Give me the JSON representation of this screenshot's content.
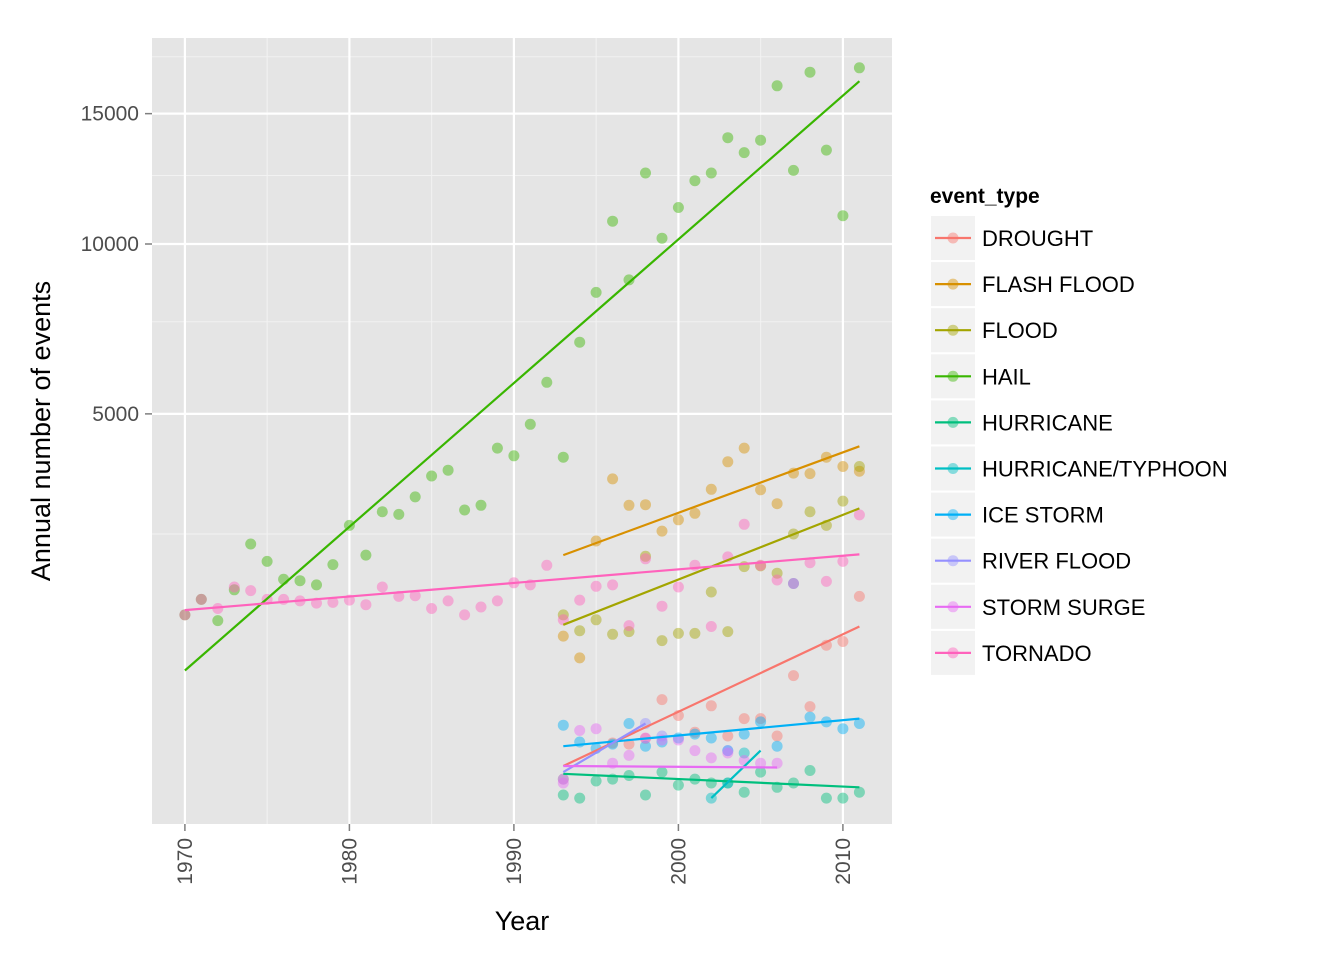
{
  "chart_data": {
    "type": "scatter",
    "title": "",
    "xlabel": "Year",
    "ylabel": "Annual number of events",
    "y_scale": "sqrt",
    "xlim": [
      1968,
      2013
    ],
    "ylim": [
      0,
      18000
    ],
    "x_ticks": [
      1970,
      1980,
      1990,
      2000,
      2010
    ],
    "y_ticks": [
      5000,
      10000,
      15000
    ],
    "x_tick_labels_rotation": "vertical",
    "grid": true,
    "trend_lines": "linear fit per series",
    "legend": {
      "title": "event_type",
      "placement": "right"
    },
    "series": [
      {
        "name": "DROUGHT",
        "color": "#F8766D",
        "points": [
          [
            1993,
            60
          ],
          [
            1996,
            195
          ],
          [
            1997,
            190
          ],
          [
            1998,
            218
          ],
          [
            1999,
            460
          ],
          [
            2000,
            350
          ],
          [
            2001,
            250
          ],
          [
            2002,
            415
          ],
          [
            2003,
            230
          ],
          [
            2004,
            330
          ],
          [
            2005,
            330
          ],
          [
            2006,
            230
          ],
          [
            2007,
            655
          ],
          [
            2008,
            410
          ],
          [
            2009,
            950
          ],
          [
            2010,
            990
          ],
          [
            2011,
            1540
          ]
        ],
        "trend": [
          [
            1993,
            100
          ],
          [
            2011,
            1160
          ]
        ]
      },
      {
        "name": "FLASH FLOOD",
        "color": "#D89000",
        "points": [
          [
            1993,
            1050
          ],
          [
            1994,
            820
          ],
          [
            1995,
            2380
          ],
          [
            1996,
            3540
          ],
          [
            1997,
            3020
          ],
          [
            1998,
            3030
          ],
          [
            1999,
            2550
          ],
          [
            2000,
            2750
          ],
          [
            2001,
            2870
          ],
          [
            2002,
            3330
          ],
          [
            2003,
            3900
          ],
          [
            2004,
            4200
          ],
          [
            2005,
            3320
          ],
          [
            2006,
            3050
          ],
          [
            2007,
            3660
          ],
          [
            2008,
            3650
          ],
          [
            2009,
            4000
          ],
          [
            2010,
            3800
          ],
          [
            2011,
            3700
          ]
        ],
        "trend": [
          [
            1993,
            2150
          ],
          [
            2011,
            4240
          ]
        ]
      },
      {
        "name": "FLOOD",
        "color": "#A3A500",
        "points": [
          [
            1993,
            1300
          ],
          [
            1994,
            1110
          ],
          [
            1995,
            1240
          ],
          [
            1996,
            1070
          ],
          [
            1997,
            1100
          ],
          [
            1998,
            2130
          ],
          [
            1999,
            1000
          ],
          [
            2000,
            1080
          ],
          [
            2001,
            1080
          ],
          [
            2002,
            1600
          ],
          [
            2003,
            1100
          ],
          [
            2004,
            1970
          ],
          [
            2005,
            1980
          ],
          [
            2006,
            1870
          ],
          [
            2007,
            2500
          ],
          [
            2008,
            2900
          ],
          [
            2009,
            2650
          ],
          [
            2010,
            3100
          ],
          [
            2011,
            3800
          ]
        ],
        "trend": [
          [
            1993,
            1180
          ],
          [
            2011,
            2960
          ]
        ]
      },
      {
        "name": "HAIL",
        "color": "#39B600",
        "points": [
          [
            1970,
            1300
          ],
          [
            1971,
            1500
          ],
          [
            1972,
            1230
          ],
          [
            1973,
            1630
          ],
          [
            1974,
            2330
          ],
          [
            1975,
            2050
          ],
          [
            1976,
            1780
          ],
          [
            1977,
            1760
          ],
          [
            1978,
            1700
          ],
          [
            1979,
            2000
          ],
          [
            1980,
            2650
          ],
          [
            1981,
            2150
          ],
          [
            1982,
            2900
          ],
          [
            1983,
            2850
          ],
          [
            1984,
            3180
          ],
          [
            1985,
            3600
          ],
          [
            1986,
            3720
          ],
          [
            1987,
            2930
          ],
          [
            1988,
            3020
          ],
          [
            1989,
            4200
          ],
          [
            1990,
            4030
          ],
          [
            1991,
            4750
          ],
          [
            1992,
            5800
          ],
          [
            1993,
            4000
          ],
          [
            1994,
            6900
          ],
          [
            1995,
            8400
          ],
          [
            1996,
            10800
          ],
          [
            1997,
            8800
          ],
          [
            1998,
            12600
          ],
          [
            1999,
            10200
          ],
          [
            2000,
            11300
          ],
          [
            2001,
            12300
          ],
          [
            2002,
            12600
          ],
          [
            2003,
            14000
          ],
          [
            2004,
            13400
          ],
          [
            2005,
            13900
          ],
          [
            2006,
            16200
          ],
          [
            2007,
            12700
          ],
          [
            2008,
            16800
          ],
          [
            2009,
            13500
          ],
          [
            2010,
            11000
          ],
          [
            2011,
            17000
          ]
        ],
        "trend": [
          [
            1970,
            700
          ],
          [
            2011,
            16400
          ]
        ]
      },
      {
        "name": "HURRICANE",
        "color": "#00BF7D",
        "points": [
          [
            1993,
            25
          ],
          [
            1994,
            20
          ],
          [
            1995,
            55
          ],
          [
            1996,
            60
          ],
          [
            1997,
            70
          ],
          [
            1998,
            25
          ],
          [
            1999,
            80
          ],
          [
            2000,
            45
          ],
          [
            2001,
            60
          ],
          [
            2002,
            50
          ],
          [
            2003,
            50
          ],
          [
            2004,
            30
          ],
          [
            2005,
            80
          ],
          [
            2006,
            40
          ],
          [
            2007,
            50
          ],
          [
            2008,
            85
          ],
          [
            2009,
            20
          ],
          [
            2010,
            20
          ],
          [
            2011,
            30
          ]
        ],
        "trend": [
          [
            1993,
            75
          ],
          [
            2011,
            40
          ]
        ]
      },
      {
        "name": "HURRICANE/TYPHOON",
        "color": "#00BFC4",
        "points": [
          [
            2002,
            20
          ],
          [
            2003,
            50
          ],
          [
            2004,
            150
          ]
        ],
        "trend": [
          [
            2002,
            20
          ],
          [
            2005,
            160
          ]
        ]
      },
      {
        "name": "ICE STORM",
        "color": "#00B0F6",
        "points": [
          [
            1993,
            290
          ],
          [
            1994,
            200
          ],
          [
            1995,
            170
          ],
          [
            1996,
            190
          ],
          [
            1997,
            300
          ],
          [
            1998,
            180
          ],
          [
            1999,
            200
          ],
          [
            2000,
            220
          ],
          [
            2001,
            240
          ],
          [
            2002,
            220
          ],
          [
            2003,
            160
          ],
          [
            2004,
            240
          ],
          [
            2005,
            310
          ],
          [
            2006,
            180
          ],
          [
            2007,
            1720
          ],
          [
            2008,
            340
          ],
          [
            2009,
            310
          ],
          [
            2010,
            270
          ],
          [
            2011,
            300
          ]
        ],
        "trend": [
          [
            1993,
            180
          ],
          [
            2011,
            330
          ]
        ]
      },
      {
        "name": "RIVER FLOOD",
        "color": "#9590FF",
        "points": [
          [
            1993,
            60
          ],
          [
            1998,
            300
          ],
          [
            1999,
            230
          ],
          [
            2003,
            160
          ]
        ],
        "trend": [
          [
            1993,
            80
          ],
          [
            1998,
            300
          ]
        ]
      },
      {
        "name": "STORM SURGE",
        "color": "#E76BF3",
        "points": [
          [
            1993,
            50
          ],
          [
            1994,
            260
          ],
          [
            1995,
            270
          ],
          [
            1996,
            110
          ],
          [
            1997,
            140
          ],
          [
            1998,
            220
          ],
          [
            1999,
            210
          ],
          [
            2000,
            210
          ],
          [
            2001,
            160
          ],
          [
            2002,
            130
          ],
          [
            2003,
            150
          ],
          [
            2004,
            120
          ],
          [
            2005,
            110
          ],
          [
            2006,
            110
          ]
        ],
        "trend": [
          [
            1993,
            100
          ],
          [
            2006,
            95
          ]
        ]
      },
      {
        "name": "TORNADO",
        "color": "#FF62BC",
        "points": [
          [
            1970,
            1300
          ],
          [
            1971,
            1500
          ],
          [
            1972,
            1380
          ],
          [
            1973,
            1670
          ],
          [
            1974,
            1620
          ],
          [
            1975,
            1500
          ],
          [
            1976,
            1500
          ],
          [
            1977,
            1480
          ],
          [
            1978,
            1450
          ],
          [
            1979,
            1460
          ],
          [
            1980,
            1490
          ],
          [
            1981,
            1430
          ],
          [
            1982,
            1670
          ],
          [
            1983,
            1540
          ],
          [
            1984,
            1550
          ],
          [
            1985,
            1380
          ],
          [
            1986,
            1480
          ],
          [
            1987,
            1300
          ],
          [
            1988,
            1400
          ],
          [
            1989,
            1480
          ],
          [
            1990,
            1730
          ],
          [
            1991,
            1700
          ],
          [
            1992,
            1990
          ],
          [
            1993,
            1240
          ],
          [
            1994,
            1490
          ],
          [
            1995,
            1680
          ],
          [
            1996,
            1700
          ],
          [
            1997,
            1170
          ],
          [
            1998,
            2090
          ],
          [
            1999,
            1410
          ],
          [
            2000,
            1670
          ],
          [
            2001,
            1990
          ],
          [
            2002,
            1160
          ],
          [
            2003,
            2120
          ],
          [
            2004,
            2670
          ],
          [
            2005,
            1990
          ],
          [
            2006,
            1770
          ],
          [
            2007,
            1720
          ],
          [
            2008,
            2030
          ],
          [
            2009,
            1750
          ],
          [
            2010,
            2050
          ],
          [
            2011,
            2840
          ]
        ],
        "trend": [
          [
            1970,
            1360
          ],
          [
            2011,
            2160
          ]
        ]
      }
    ]
  }
}
